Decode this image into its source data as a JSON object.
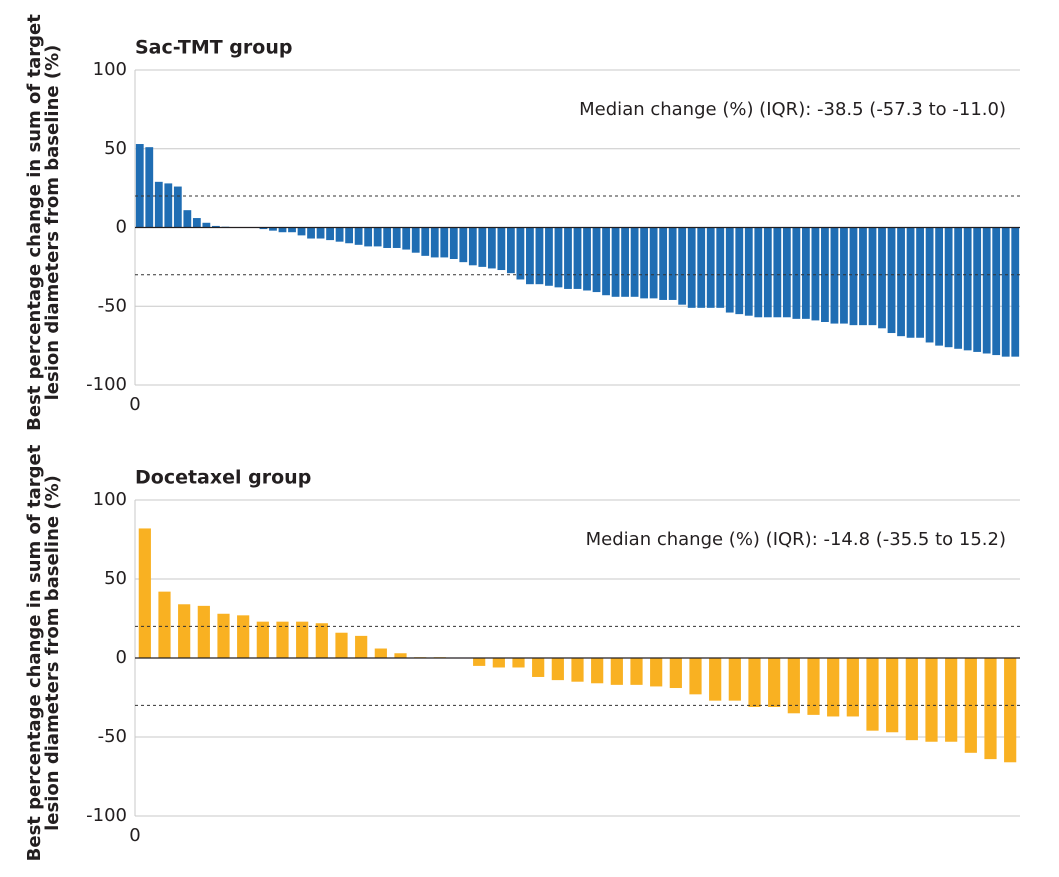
{
  "chart_data": [
    {
      "type": "bar",
      "title": "Sac-TMT group",
      "y_label": [
        "Best percentage change in sum of target",
        "lesion diameters from baseline (%)"
      ],
      "annotation": "Median change (%) (IQR): -38.5 (-57.3 to -11.0)",
      "color": "#1f6db3",
      "values": [
        53,
        51,
        29,
        28,
        26,
        11,
        6,
        3,
        1,
        0.5,
        0,
        0,
        0,
        -1,
        -2,
        -3,
        -3,
        -5,
        -7,
        -7,
        -8,
        -9,
        -10,
        -11,
        -12,
        -12,
        -13,
        -13,
        -14,
        -16,
        -18,
        -19,
        -19,
        -20,
        -22,
        -24,
        -25,
        -26,
        -27,
        -29,
        -33,
        -36,
        -36,
        -37,
        -38,
        -39,
        -39,
        -40,
        -41,
        -43,
        -44,
        -44,
        -44,
        -45,
        -45,
        -46,
        -46,
        -49,
        -51,
        -51,
        -51,
        -51,
        -54,
        -55,
        -56,
        -57,
        -57,
        -57,
        -57,
        -58,
        -58,
        -59,
        -60,
        -61,
        -61,
        -62,
        -62,
        -62,
        -64,
        -67,
        -69,
        -70,
        -70,
        -73,
        -75,
        -76,
        -77,
        -78,
        -79,
        -80,
        -81,
        -82,
        -82
      ],
      "xlim": [
        0,
        93
      ],
      "xticks": [
        0
      ],
      "ylim": [
        -100,
        100
      ],
      "yticks": [
        -100,
        -50,
        0,
        50,
        100
      ],
      "reference_lines": [
        20,
        -30
      ],
      "grid": true
    },
    {
      "type": "bar",
      "title": "Docetaxel group",
      "y_label": [
        "Best percentage change in sum of target",
        "lesion diameters from baseline (%)"
      ],
      "annotation": "Median change (%) (IQR): -14.8 (-35.5 to 15.2)",
      "color": "#f9b122",
      "values": [
        82,
        42,
        34,
        33,
        28,
        27,
        23,
        23,
        23,
        22,
        16,
        14,
        6,
        3,
        0.5,
        0.5,
        0,
        -5,
        -6,
        -6,
        -12,
        -14,
        -15,
        -16,
        -17,
        -17,
        -18,
        -19,
        -23,
        -27,
        -27,
        -31,
        -31,
        -35,
        -36,
        -37,
        -37,
        -46,
        -47,
        -52,
        -53,
        -53,
        -60,
        -64,
        -66
      ],
      "xlim": [
        0,
        45
      ],
      "xticks": [
        0
      ],
      "ylim": [
        -100,
        100
      ],
      "yticks": [
        -100,
        -50,
        0,
        50,
        100
      ],
      "reference_lines": [
        20,
        -30
      ],
      "grid": true
    }
  ]
}
